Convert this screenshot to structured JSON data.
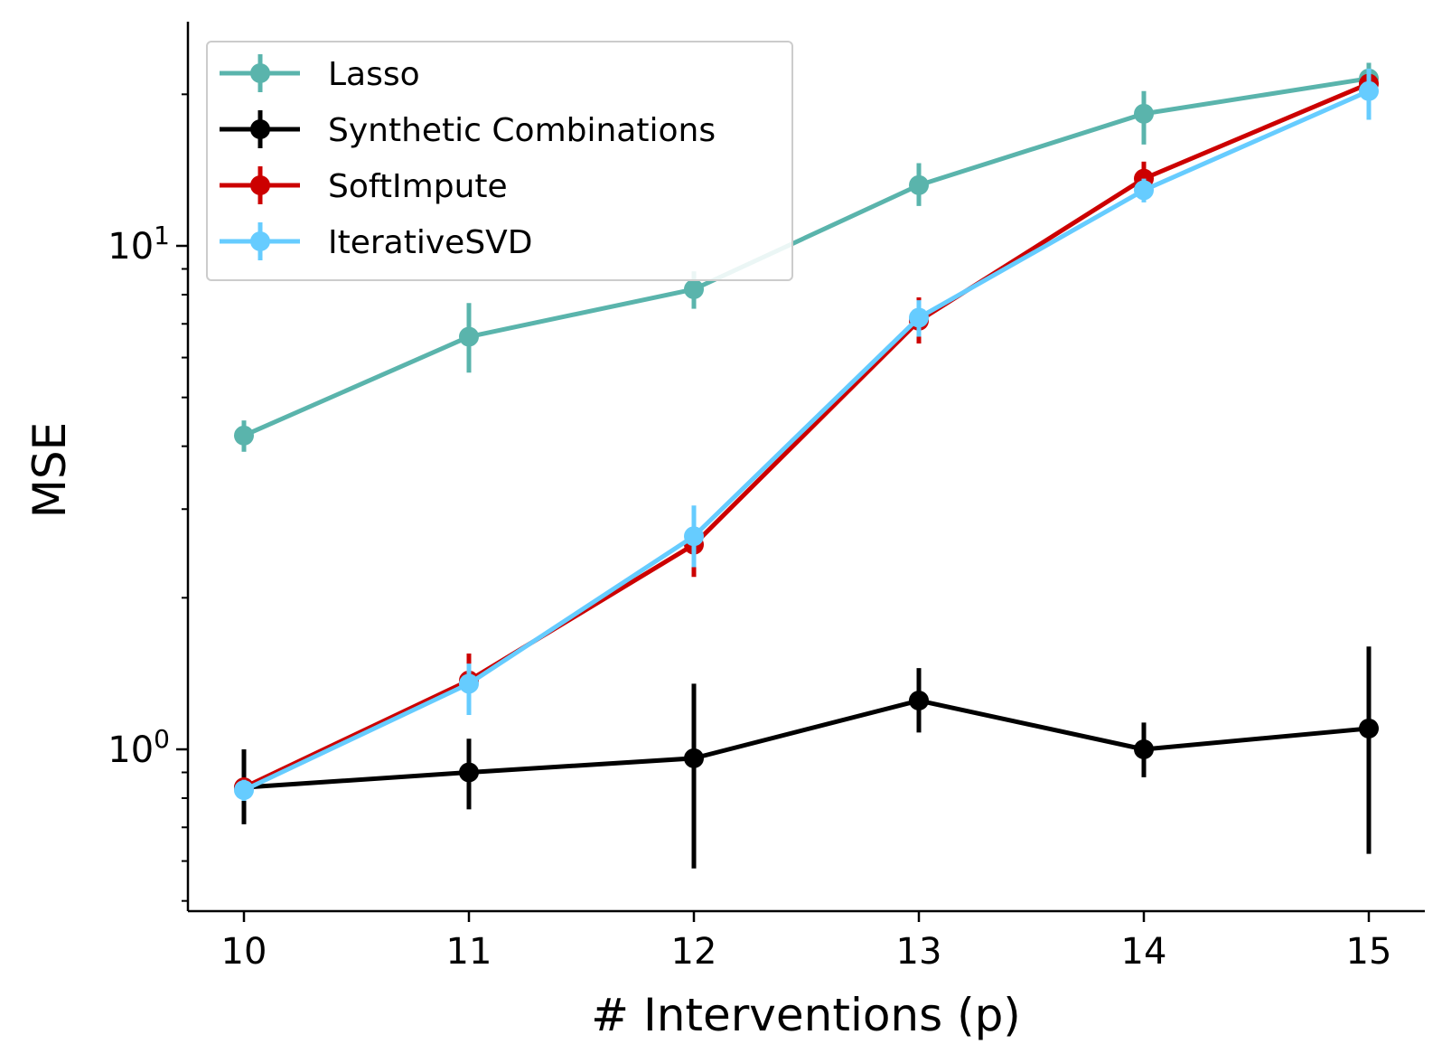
{
  "chart_data": {
    "type": "line",
    "title": "",
    "xlabel": "# Interventions (p)",
    "ylabel": "MSE",
    "yscale": "log",
    "xlim": [
      9.75,
      15.25
    ],
    "ylim": [
      0.48,
      25
    ],
    "x": [
      10,
      11,
      12,
      13,
      14,
      15
    ],
    "x_tick_labels": [
      "10",
      "11",
      "12",
      "13",
      "14",
      "15"
    ],
    "y_major_ticks": [
      {
        "value": 1,
        "base": "10",
        "exp": "0"
      },
      {
        "value": 10,
        "base": "10",
        "exp": "1"
      }
    ],
    "y_minor_ticks": [
      0.5,
      0.6,
      0.7,
      0.8,
      0.9,
      2,
      3,
      4,
      5,
      6,
      7,
      8,
      9,
      20
    ],
    "legend_position": "upper-left",
    "series": [
      {
        "name": "Lasso",
        "color": "#5ab4ac",
        "values": [
          4.2,
          6.6,
          8.2,
          13.2,
          18.3,
          21.5
        ],
        "err_low": [
          3.9,
          5.6,
          7.5,
          12.0,
          15.9,
          19.8
        ],
        "err_high": [
          4.5,
          7.7,
          8.9,
          14.6,
          20.3,
          23.1
        ]
      },
      {
        "name": "Synthetic Combinations",
        "color": "#000000",
        "values": [
          0.84,
          0.9,
          0.96,
          1.25,
          1.0,
          1.1
        ],
        "err_low": [
          0.71,
          0.76,
          0.58,
          1.08,
          0.88,
          0.62
        ],
        "err_high": [
          1.0,
          1.05,
          1.35,
          1.45,
          1.13,
          1.6
        ]
      },
      {
        "name": "SoftImpute",
        "color": "#cc0000",
        "values": [
          0.84,
          1.37,
          2.55,
          7.1,
          13.6,
          21.0
        ],
        "err_low": [
          0.8,
          1.22,
          2.2,
          6.4,
          12.8,
          20.0
        ],
        "err_high": [
          0.88,
          1.55,
          2.9,
          7.9,
          14.7,
          22.0
        ]
      },
      {
        "name": "IterativeSVD",
        "color": "#66ccff",
        "values": [
          0.83,
          1.35,
          2.65,
          7.2,
          12.9,
          20.3
        ],
        "err_low": [
          0.79,
          1.17,
          2.3,
          6.6,
          12.2,
          17.8
        ],
        "err_high": [
          0.87,
          1.48,
          3.05,
          7.8,
          13.6,
          22.5
        ]
      }
    ]
  }
}
